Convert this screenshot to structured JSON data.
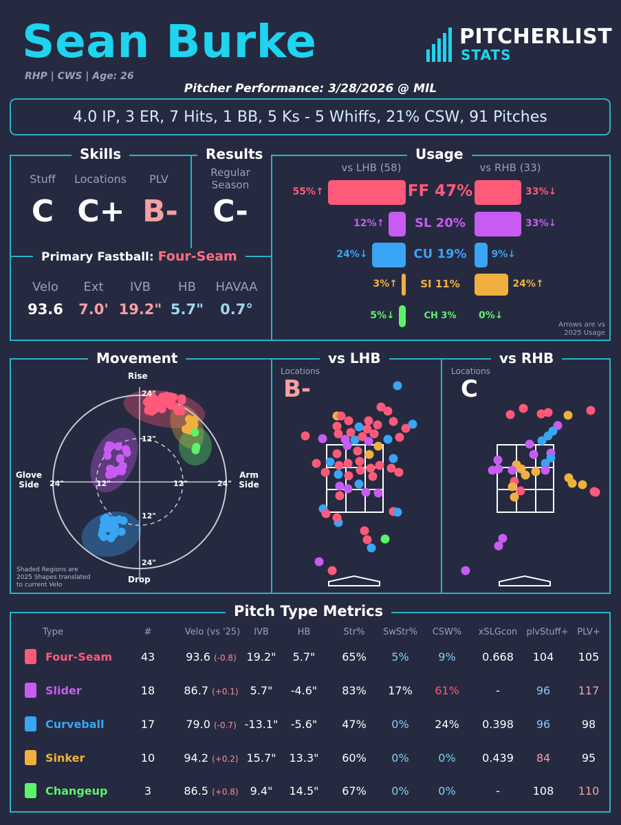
{
  "header": {
    "name": "Sean Burke",
    "bio": "RHP | CWS | Age: 26",
    "performance": "Pitcher Performance: 3/28/2026 @ MIL",
    "logo_top": "PITCHERLIST",
    "logo_bottom": "STATS",
    "summary": "4.0 IP, 3 ER, 7 Hits, 1 BB, 5 Ks - 5 Whiffs, 21% CSW, 91 Pitches"
  },
  "colors": {
    "FF": "#ff5a7a",
    "SL": "#c85cf2",
    "CU": "#3aa4f5",
    "SI": "#f0b040",
    "CH": "#5cf26a",
    "accent": "#1fd4ee",
    "border": "#2bb3c4"
  },
  "skills": {
    "title": "Skills",
    "labels": [
      "Stuff",
      "Locations",
      "PLV"
    ],
    "grades": [
      "C",
      "C+",
      "B-"
    ]
  },
  "results": {
    "title": "Results",
    "label_1": "Regular",
    "label_2": "Season",
    "grade": "C-"
  },
  "fastball": {
    "title": "Primary Fastball:",
    "pitch": "Four-Seam",
    "labels": [
      "Velo",
      "Ext",
      "IVB",
      "HB",
      "HAVAA"
    ],
    "values": [
      "93.6",
      "7.0'",
      "19.2\"",
      "5.7\"",
      "0.7°"
    ]
  },
  "usage": {
    "title": "Usage",
    "lhb_header": "vs LHB (58)",
    "rhb_header": "vs RHB (33)",
    "note_1": "Arrows are vs",
    "note_2": "2025 Usage",
    "rows": [
      {
        "name": "FF 47%",
        "lhb": "55%↑",
        "rhb": "33%↓",
        "lhb_pct": 55,
        "rhb_pct": 33,
        "color": "FF"
      },
      {
        "name": "SL 20%",
        "lhb": "12%↑",
        "rhb": "33%↓",
        "lhb_pct": 12,
        "rhb_pct": 33,
        "color": "SL"
      },
      {
        "name": "CU 19%",
        "lhb": "24%↓",
        "rhb": "9%↓",
        "lhb_pct": 24,
        "rhb_pct": 9,
        "color": "CU"
      },
      {
        "name": "SI 11%",
        "lhb": "3%↑",
        "rhb": "24%↑",
        "lhb_pct": 3,
        "rhb_pct": 24,
        "color": "SI"
      },
      {
        "name": "CH 3%",
        "lhb": "5%↓",
        "rhb": "0%↓",
        "lhb_pct": 5,
        "rhb_pct": 0,
        "color": "CH"
      }
    ]
  },
  "movement": {
    "title": "Movement",
    "rise": "Rise",
    "drop": "Drop",
    "glove_1": "Glove",
    "glove_2": "Side",
    "arm_1": "Arm",
    "arm_2": "Side",
    "ticks": [
      "24\"",
      "12\"",
      "12\"",
      "24\"",
      "24\"",
      "12\"",
      "12\"",
      "24\""
    ],
    "note_1": "Shaded Regions are",
    "note_2": "2025 Shapes translated",
    "note_3": "to current Velo"
  },
  "lhb": {
    "title": "vs LHB",
    "label": "Locations",
    "grade": "B-"
  },
  "rhb": {
    "title": "vs RHB",
    "label": "Locations",
    "grade": "C"
  },
  "metrics": {
    "title": "Pitch Type Metrics",
    "headers": [
      "Type",
      "#",
      "Velo (vs '25)",
      "IVB",
      "HB",
      "Str%",
      "SwStr%",
      "CSW%",
      "xSLGcon",
      "plvStuff+",
      "PLV+"
    ],
    "rows": [
      {
        "type": "Four-Seam",
        "n": "43",
        "velo": "93.6",
        "delta": "(-0.8)",
        "ivb": "19.2\"",
        "hb": "5.7\"",
        "str": "65%",
        "swstr": "5%",
        "csw": "9%",
        "xslg": "0.668",
        "stuff": "104",
        "plv": "105",
        "color": "FF"
      },
      {
        "type": "Slider",
        "n": "18",
        "velo": "86.7",
        "delta": "(+0.1)",
        "ivb": "5.7\"",
        "hb": "-4.6\"",
        "str": "83%",
        "swstr": "17%",
        "csw": "61%",
        "xslg": "-",
        "stuff": "96",
        "plv": "117",
        "color": "SL"
      },
      {
        "type": "Curveball",
        "n": "17",
        "velo": "79.0",
        "delta": "(-0.7)",
        "ivb": "-13.1\"",
        "hb": "-5.6\"",
        "str": "47%",
        "swstr": "0%",
        "csw": "24%",
        "xslg": "0.398",
        "stuff": "96",
        "plv": "98",
        "color": "CU"
      },
      {
        "type": "Sinker",
        "n": "10",
        "velo": "94.2",
        "delta": "(+0.2)",
        "ivb": "15.7\"",
        "hb": "13.3\"",
        "str": "60%",
        "swstr": "0%",
        "csw": "0%",
        "xslg": "0.439",
        "stuff": "84",
        "plv": "95",
        "color": "SI"
      },
      {
        "type": "Changeup",
        "n": "3",
        "velo": "86.5",
        "delta": "(+0.8)",
        "ivb": "9.4\"",
        "hb": "14.5\"",
        "str": "67%",
        "swstr": "0%",
        "csw": "0%",
        "xslg": "-",
        "stuff": "108",
        "plv": "110",
        "color": "CH"
      }
    ]
  }
}
